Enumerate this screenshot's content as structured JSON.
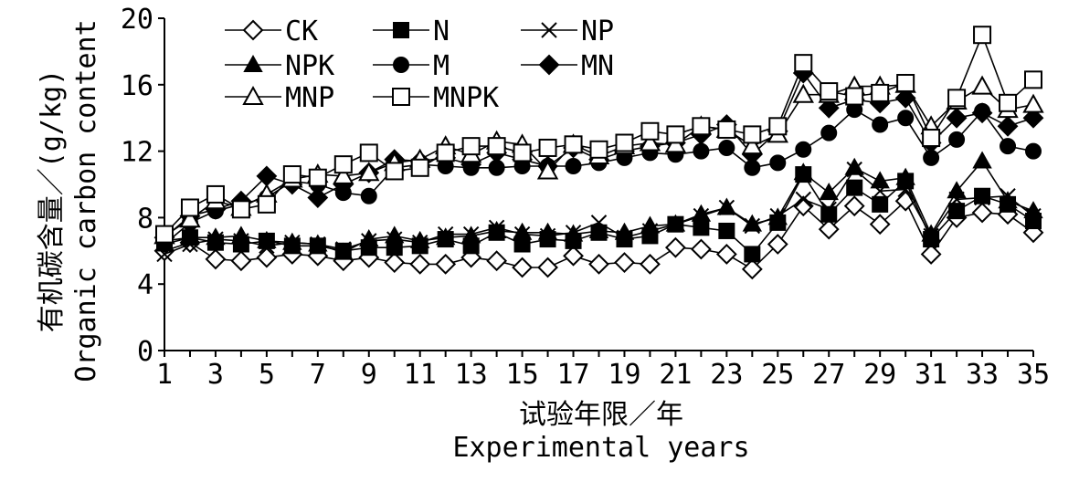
{
  "chart_data": {
    "type": "line",
    "xlabel_cn": "试验年限／年",
    "xlabel_en": "Experimental years",
    "ylabel_cn": "有机碳含量／(g/kg)",
    "ylabel_en": "Organic carbon content",
    "xlim": [
      1,
      35
    ],
    "ylim": [
      0,
      20
    ],
    "x_ticks": [
      1,
      3,
      5,
      7,
      9,
      11,
      13,
      15,
      17,
      19,
      21,
      23,
      25,
      27,
      29,
      31,
      33,
      35
    ],
    "y_ticks": [
      0,
      4,
      8,
      12,
      16,
      20
    ],
    "grid": false,
    "legend_position": "top-left",
    "x": [
      1,
      2,
      3,
      4,
      5,
      6,
      7,
      8,
      9,
      10,
      11,
      12,
      13,
      14,
      15,
      16,
      17,
      18,
      19,
      20,
      21,
      22,
      23,
      24,
      25,
      26,
      27,
      28,
      29,
      30,
      31,
      32,
      33,
      34,
      35
    ],
    "series": [
      {
        "name": "CK",
        "marker": "diamond-open",
        "values": [
          6.0,
          6.5,
          5.5,
          5.4,
          5.6,
          5.8,
          5.7,
          5.4,
          5.6,
          5.3,
          5.2,
          5.2,
          5.6,
          5.4,
          5.0,
          5.0,
          5.7,
          5.2,
          5.3,
          5.2,
          6.2,
          6.1,
          5.8,
          4.9,
          6.4,
          8.7,
          7.3,
          8.7,
          7.6,
          9.0,
          5.8,
          8.0,
          8.3,
          8.2,
          7.1
        ]
      },
      {
        "name": "N",
        "marker": "square-filled",
        "values": [
          6.6,
          6.8,
          6.5,
          6.4,
          6.6,
          6.3,
          6.3,
          6.0,
          6.2,
          6.2,
          6.3,
          6.7,
          6.3,
          7.1,
          6.4,
          6.7,
          6.6,
          7.1,
          6.7,
          6.9,
          7.6,
          7.4,
          7.2,
          5.8,
          7.7,
          10.6,
          8.2,
          9.8,
          8.8,
          10.2,
          6.7,
          8.4,
          9.3,
          8.8,
          7.8
        ]
      },
      {
        "name": "NP",
        "marker": "x",
        "values": [
          5.8,
          6.4,
          6.7,
          6.6,
          6.3,
          6.5,
          6.4,
          6.1,
          6.6,
          6.7,
          6.5,
          7.0,
          7.0,
          7.4,
          7.0,
          6.9,
          7.1,
          7.7,
          6.8,
          7.2,
          7.6,
          8.1,
          8.6,
          7.5,
          8.1,
          9.1,
          8.5,
          10.9,
          9.6,
          9.7,
          6.9,
          9.1,
          9.2,
          9.3,
          8.1
        ]
      },
      {
        "name": "NPK",
        "marker": "triangle-filled",
        "values": [
          6.4,
          6.8,
          6.8,
          6.9,
          6.6,
          6.5,
          6.4,
          5.9,
          6.7,
          6.9,
          6.6,
          6.8,
          6.9,
          7.2,
          7.1,
          7.1,
          7.0,
          7.2,
          7.1,
          7.5,
          7.6,
          8.2,
          8.6,
          7.6,
          8.0,
          10.7,
          9.5,
          11.0,
          10.2,
          10.4,
          7.0,
          9.6,
          11.4,
          9.0,
          8.4
        ]
      },
      {
        "name": "M",
        "marker": "circle-filled",
        "values": [
          6.4,
          7.7,
          8.4,
          8.8,
          9.2,
          10.2,
          10.0,
          9.5,
          9.3,
          11.0,
          11.2,
          11.1,
          11.0,
          11.0,
          11.1,
          11.1,
          11.1,
          11.3,
          11.6,
          11.9,
          11.8,
          12.0,
          12.2,
          11.0,
          11.3,
          12.1,
          13.1,
          14.5,
          13.6,
          14.0,
          11.6,
          12.7,
          14.4,
          12.3,
          12.0
        ]
      },
      {
        "name": "MN",
        "marker": "diamond-filled",
        "values": [
          6.8,
          8.1,
          8.5,
          9.0,
          10.5,
          10.0,
          9.2,
          10.0,
          10.7,
          11.5,
          11.4,
          11.6,
          11.2,
          11.9,
          11.5,
          11.1,
          12.2,
          11.5,
          12.0,
          12.3,
          12.5,
          13.0,
          13.6,
          11.8,
          13.2,
          16.7,
          14.6,
          15.1,
          14.9,
          15.2,
          12.5,
          14.0,
          14.3,
          13.5,
          14.0
        ]
      },
      {
        "name": "MNP",
        "marker": "triangle-open",
        "values": [
          6.9,
          7.9,
          9.0,
          8.6,
          9.4,
          10.3,
          10.6,
          10.5,
          10.7,
          11.3,
          11.5,
          12.3,
          11.8,
          12.6,
          12.4,
          10.8,
          12.4,
          11.7,
          12.3,
          12.5,
          12.4,
          13.5,
          13.3,
          12.3,
          13.0,
          15.4,
          15.4,
          15.9,
          15.9,
          16.0,
          13.5,
          15.0,
          15.9,
          14.5,
          14.8
        ]
      },
      {
        "name": "MNPK",
        "marker": "square-open",
        "values": [
          7.0,
          8.6,
          9.4,
          8.5,
          8.8,
          10.6,
          10.4,
          11.2,
          11.9,
          10.8,
          11.0,
          11.9,
          12.3,
          12.3,
          11.9,
          12.2,
          12.4,
          12.1,
          12.5,
          13.2,
          13.0,
          13.5,
          13.3,
          13.0,
          13.5,
          17.3,
          15.6,
          15.3,
          15.5,
          16.1,
          12.8,
          15.2,
          19.0,
          14.9,
          16.3
        ]
      }
    ]
  }
}
